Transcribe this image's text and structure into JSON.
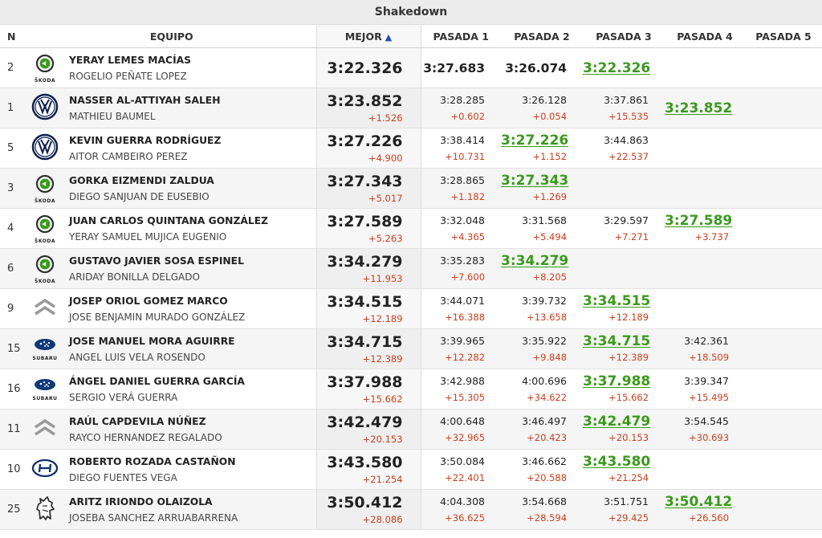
{
  "title": "Shakedown",
  "headers": {
    "n": "N",
    "equipo": "EQUIPO",
    "mejor": "MEJOR",
    "sort_icon": "▲",
    "pasadas": [
      "PASADA 1",
      "PASADA 2",
      "PASADA 3",
      "PASADA 4",
      "PASADA 5"
    ]
  },
  "colors": {
    "best": "#3a9a1c",
    "diff": "#c8401e",
    "sort": "#1f4fb4"
  },
  "rows": [
    {
      "n": "2",
      "brand": "skoda",
      "brand_label": "ŠKODA",
      "driver": "YERAY LEMES MACÍAS",
      "codriver": "ROGELIO PEÑATE LOPEZ",
      "best": "3:22.326",
      "best_diff": "",
      "passes": [
        {
          "t": "3:27.683",
          "d": ""
        },
        {
          "t": "3:26.074",
          "d": ""
        },
        {
          "t": "3:22.326",
          "d": ""
        },
        {
          "t": "",
          "d": ""
        },
        {
          "t": "",
          "d": ""
        }
      ],
      "best_pass": 2
    },
    {
      "n": "1",
      "brand": "vw",
      "brand_label": "",
      "driver": "NASSER AL-ATTIYAH SALEH",
      "codriver": "MATHIEU BAUMEL",
      "best": "3:23.852",
      "best_diff": "+1.526",
      "passes": [
        {
          "t": "3:28.285",
          "d": "+0.602"
        },
        {
          "t": "3:26.128",
          "d": "+0.054"
        },
        {
          "t": "3:37.861",
          "d": "+15.535"
        },
        {
          "t": "3:23.852",
          "d": ""
        },
        {
          "t": "",
          "d": ""
        }
      ],
      "best_pass": 3
    },
    {
      "n": "5",
      "brand": "vw",
      "brand_label": "",
      "driver": "KEVIN GUERRA RODRÍGUEZ",
      "codriver": "AITOR CAMBEIRO PEREZ",
      "best": "3:27.226",
      "best_diff": "+4.900",
      "passes": [
        {
          "t": "3:38.414",
          "d": "+10.731"
        },
        {
          "t": "3:27.226",
          "d": "+1.152"
        },
        {
          "t": "3:44.863",
          "d": "+22.537"
        },
        {
          "t": "",
          "d": ""
        },
        {
          "t": "",
          "d": ""
        }
      ],
      "best_pass": 1
    },
    {
      "n": "3",
      "brand": "skoda",
      "brand_label": "ŠKODA",
      "driver": "GORKA EIZMENDI ZALDUA",
      "codriver": "DIEGO SANJUAN DE EUSEBIO",
      "best": "3:27.343",
      "best_diff": "+5.017",
      "passes": [
        {
          "t": "3:28.865",
          "d": "+1.182"
        },
        {
          "t": "3:27.343",
          "d": "+1.269"
        },
        {
          "t": "",
          "d": ""
        },
        {
          "t": "",
          "d": ""
        },
        {
          "t": "",
          "d": ""
        }
      ],
      "best_pass": 1
    },
    {
      "n": "4",
      "brand": "skoda",
      "brand_label": "ŠKODA",
      "driver": "JUAN CARLOS QUINTANA GONZÁLEZ",
      "codriver": "YERAY SAMUEL MUJICA EUGENIO",
      "best": "3:27.589",
      "best_diff": "+5.263",
      "passes": [
        {
          "t": "3:32.048",
          "d": "+4.365"
        },
        {
          "t": "3:31.568",
          "d": "+5.494"
        },
        {
          "t": "3:29.597",
          "d": "+7.271"
        },
        {
          "t": "3:27.589",
          "d": "+3.737"
        },
        {
          "t": "",
          "d": ""
        }
      ],
      "best_pass": 3
    },
    {
      "n": "6",
      "brand": "skoda",
      "brand_label": "ŠKODA",
      "driver": "GUSTAVO JAVIER SOSA ESPINEL",
      "codriver": "ARIDAY BONILLA DELGADO",
      "best": "3:34.279",
      "best_diff": "+11.953",
      "passes": [
        {
          "t": "3:35.283",
          "d": "+7.600"
        },
        {
          "t": "3:34.279",
          "d": "+8.205"
        },
        {
          "t": "",
          "d": ""
        },
        {
          "t": "",
          "d": ""
        },
        {
          "t": "",
          "d": ""
        }
      ],
      "best_pass": 1
    },
    {
      "n": "9",
      "brand": "citroen",
      "brand_label": "",
      "driver": "JOSEP ORIOL GOMEZ MARCO",
      "codriver": "JOSE BENJAMIN MURADO GONZÁLEZ",
      "best": "3:34.515",
      "best_diff": "+12.189",
      "passes": [
        {
          "t": "3:44.071",
          "d": "+16.388"
        },
        {
          "t": "3:39.732",
          "d": "+13.658"
        },
        {
          "t": "3:34.515",
          "d": "+12.189"
        },
        {
          "t": "",
          "d": ""
        },
        {
          "t": "",
          "d": ""
        }
      ],
      "best_pass": 2
    },
    {
      "n": "15",
      "brand": "subaru",
      "brand_label": "SUBARU",
      "driver": "JOSE MANUEL MORA AGUIRRE",
      "codriver": "ANGEL LUIS VELA ROSENDO",
      "best": "3:34.715",
      "best_diff": "+12.389",
      "passes": [
        {
          "t": "3:39.965",
          "d": "+12.282"
        },
        {
          "t": "3:35.922",
          "d": "+9.848"
        },
        {
          "t": "3:34.715",
          "d": "+12.389"
        },
        {
          "t": "3:42.361",
          "d": "+18.509"
        },
        {
          "t": "",
          "d": ""
        }
      ],
      "best_pass": 2
    },
    {
      "n": "16",
      "brand": "subaru",
      "brand_label": "SUBARU",
      "driver": "ÁNGEL DANIEL GUERRA GARCÍA",
      "codriver": "SERGIO VERÁ GUERRA",
      "best": "3:37.988",
      "best_diff": "+15.662",
      "passes": [
        {
          "t": "3:42.988",
          "d": "+15.305"
        },
        {
          "t": "4:00.696",
          "d": "+34.622"
        },
        {
          "t": "3:37.988",
          "d": "+15.662"
        },
        {
          "t": "3:39.347",
          "d": "+15.495"
        },
        {
          "t": "",
          "d": ""
        }
      ],
      "best_pass": 2
    },
    {
      "n": "11",
      "brand": "citroen",
      "brand_label": "",
      "driver": "RAÚL CAPDEVILA NÚÑEZ",
      "codriver": "RAYCO HERNANDEZ REGALADO",
      "best": "3:42.479",
      "best_diff": "+20.153",
      "passes": [
        {
          "t": "4:00.648",
          "d": "+32.965"
        },
        {
          "t": "3:46.497",
          "d": "+20.423"
        },
        {
          "t": "3:42.479",
          "d": "+20.153"
        },
        {
          "t": "3:54.545",
          "d": "+30.693"
        },
        {
          "t": "",
          "d": ""
        }
      ],
      "best_pass": 2
    },
    {
      "n": "10",
      "brand": "hyundai",
      "brand_label": "",
      "driver": "ROBERTO ROZADA CASTAÑON",
      "codriver": "DIEGO FUENTES VEGA",
      "best": "3:43.580",
      "best_diff": "+21.254",
      "passes": [
        {
          "t": "3:50.084",
          "d": "+22.401"
        },
        {
          "t": "3:46.662",
          "d": "+20.588"
        },
        {
          "t": "3:43.580",
          "d": "+21.254"
        },
        {
          "t": "",
          "d": ""
        },
        {
          "t": "",
          "d": ""
        }
      ],
      "best_pass": 2
    },
    {
      "n": "25",
      "brand": "peugeot",
      "brand_label": "",
      "driver": "ARITZ IRIONDO OLAIZOLA",
      "codriver": "JOSEBA SANCHEZ ARRUABARRENA",
      "best": "3:50.412",
      "best_diff": "+28.086",
      "passes": [
        {
          "t": "4:04.308",
          "d": "+36.625"
        },
        {
          "t": "3:54.668",
          "d": "+28.594"
        },
        {
          "t": "3:51.751",
          "d": "+29.425"
        },
        {
          "t": "3:50.412",
          "d": "+26.560"
        },
        {
          "t": "",
          "d": ""
        }
      ],
      "best_pass": 3
    }
  ]
}
